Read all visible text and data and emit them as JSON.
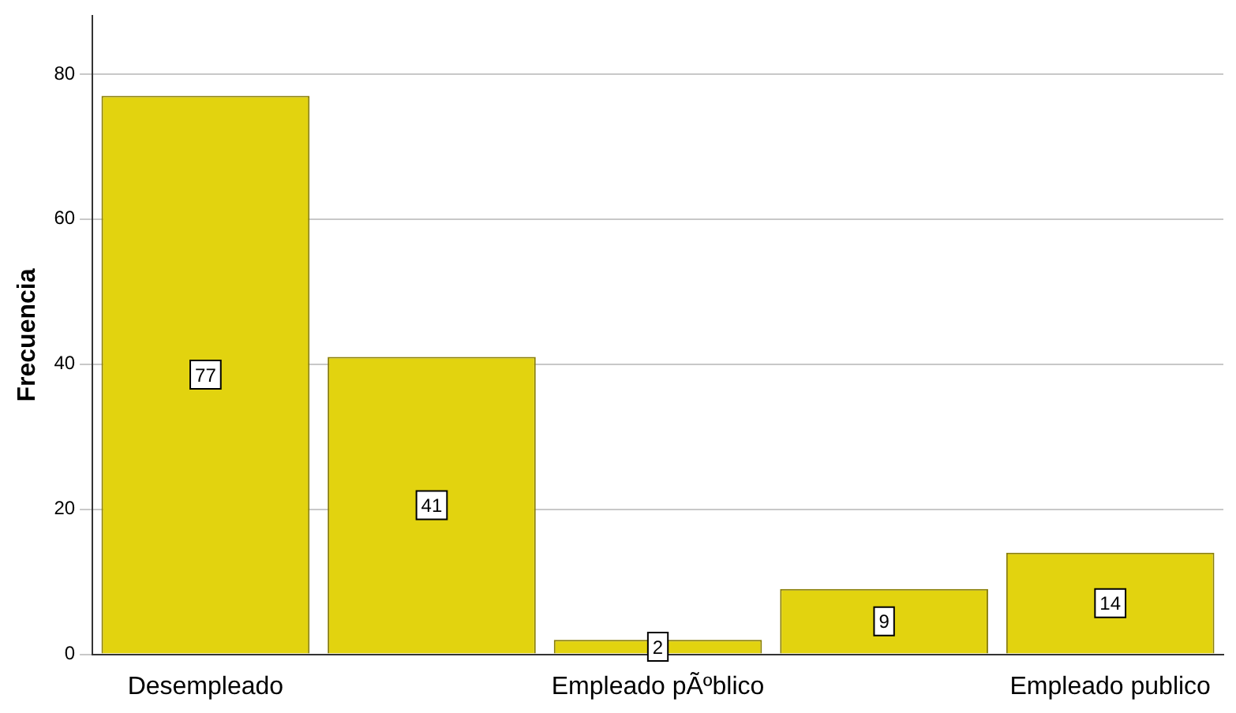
{
  "chart_data": {
    "type": "bar",
    "ylabel": "Frecuencia",
    "categories": [
      "Desempleado",
      null,
      "Empleado pÃºblico",
      null,
      "Empleado publico"
    ],
    "values": [
      77,
      41,
      2,
      9,
      14
    ],
    "color": "#e2d30f",
    "ylim": [
      0,
      88
    ],
    "yticks": [
      0,
      20,
      40,
      60,
      80
    ],
    "grid": "y",
    "data_labels": true
  }
}
